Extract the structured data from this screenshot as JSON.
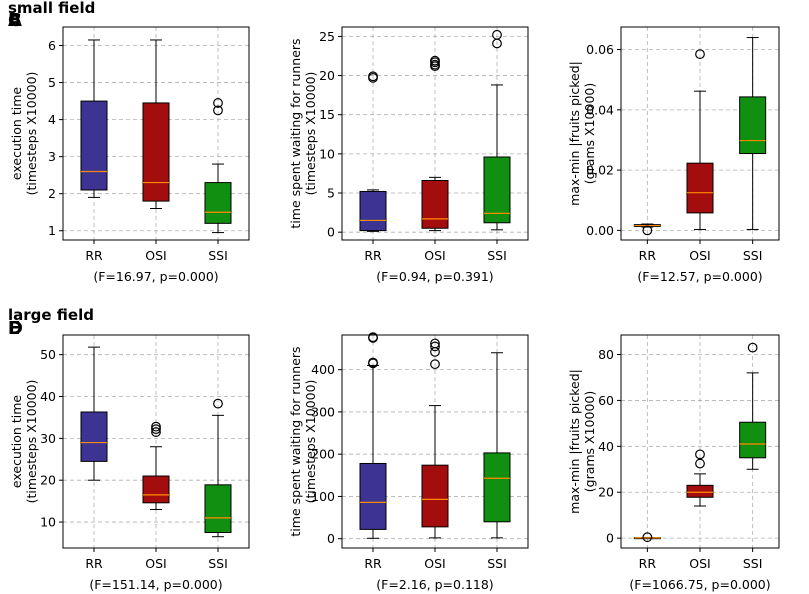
{
  "sections": {
    "small": "small field",
    "large": "large field"
  },
  "chart_data": [
    {
      "id": "A",
      "type": "boxplot",
      "ylabel": [
        "execution time",
        "(timesteps X10000)"
      ],
      "categories": [
        "RR",
        "OSI",
        "SSI"
      ],
      "colors": [
        "#3d3393",
        "#a30d0d",
        "#118f11"
      ],
      "ylim": [
        0.75,
        6.5
      ],
      "yticks": [
        1,
        2,
        3,
        4,
        5,
        6
      ],
      "ytick_labels": [
        "1",
        "2",
        "3",
        "4",
        "5",
        "6"
      ],
      "boxes": [
        {
          "whislo": 1.9,
          "q1": 2.1,
          "med": 2.6,
          "q3": 4.5,
          "whishi": 6.15,
          "fliers": []
        },
        {
          "whislo": 1.6,
          "q1": 1.8,
          "med": 2.3,
          "q3": 4.45,
          "whishi": 6.15,
          "fliers": []
        },
        {
          "whislo": 0.95,
          "q1": 1.2,
          "med": 1.5,
          "q3": 2.3,
          "whishi": 2.8,
          "fliers": [
            4.25,
            4.45
          ]
        }
      ],
      "stat": "(F=16.97, p=0.000)"
    },
    {
      "id": "B",
      "type": "boxplot",
      "ylabel": [
        "time spent waiting for runners",
        "(timesteps X10000)"
      ],
      "categories": [
        "RR",
        "OSI",
        "SSI"
      ],
      "colors": [
        "#3d3393",
        "#a30d0d",
        "#118f11"
      ],
      "ylim": [
        -1,
        26.2
      ],
      "yticks": [
        0,
        5,
        10,
        15,
        20,
        25
      ],
      "ytick_labels": [
        "0",
        "5",
        "10",
        "15",
        "20",
        "25"
      ],
      "boxes": [
        {
          "whislo": 0.1,
          "q1": 0.2,
          "med": 1.5,
          "q3": 5.2,
          "whishi": 5.4,
          "fliers": [
            19.7,
            19.9
          ]
        },
        {
          "whislo": 0.2,
          "q1": 0.5,
          "med": 1.7,
          "q3": 6.6,
          "whishi": 7.0,
          "fliers": [
            21.2,
            21.4,
            21.7,
            21.9
          ]
        },
        {
          "whislo": 0.3,
          "q1": 1.2,
          "med": 2.4,
          "q3": 9.6,
          "whishi": 18.8,
          "fliers": [
            24.1,
            25.2
          ]
        }
      ],
      "stat": "(F=0.94, p=0.391)"
    },
    {
      "id": "C",
      "type": "boxplot",
      "ylabel": [
        "max-min |fruits picked|",
        "(grams X10000)"
      ],
      "categories": [
        "RR",
        "OSI",
        "SSI"
      ],
      "colors": [
        "#3d3393",
        "#a30d0d",
        "#118f11"
      ],
      "ylim": [
        -0.0032,
        0.0675
      ],
      "yticks": [
        0,
        0.02,
        0.04,
        0.06
      ],
      "ytick_labels": [
        "0.00",
        "0.02",
        "0.04",
        "0.06"
      ],
      "boxes": [
        {
          "whislo": 0.0011,
          "q1": 0.0013,
          "med": 0.0016,
          "q3": 0.0019,
          "whishi": 0.0021,
          "fliers": [
            0.0
          ]
        },
        {
          "whislo": 0.0003,
          "q1": 0.0058,
          "med": 0.0125,
          "q3": 0.0223,
          "whishi": 0.0462,
          "fliers": [
            0.0585
          ]
        },
        {
          "whislo": 0.0003,
          "q1": 0.0255,
          "med": 0.0298,
          "q3": 0.0443,
          "whishi": 0.064,
          "fliers": []
        }
      ],
      "stat": "(F=12.57, p=0.000)"
    },
    {
      "id": "D",
      "type": "boxplot",
      "ylabel": [
        "execution time",
        "(timesteps X10000)"
      ],
      "categories": [
        "RR",
        "OSI",
        "SSI"
      ],
      "colors": [
        "#3d3393",
        "#a30d0d",
        "#118f11"
      ],
      "ylim": [
        3.8,
        54.7
      ],
      "yticks": [
        10,
        20,
        30,
        40,
        50
      ],
      "ytick_labels": [
        "10",
        "20",
        "30",
        "40",
        "50"
      ],
      "boxes": [
        {
          "whislo": 20.0,
          "q1": 24.5,
          "med": 29.0,
          "q3": 36.3,
          "whishi": 51.8,
          "fliers": []
        },
        {
          "whislo": 13.0,
          "q1": 14.6,
          "med": 16.5,
          "q3": 21.0,
          "whishi": 28.0,
          "fliers": [
            31.5,
            32.2,
            32.8
          ]
        },
        {
          "whislo": 6.5,
          "q1": 7.5,
          "med": 11.0,
          "q3": 18.9,
          "whishi": 35.5,
          "fliers": [
            38.3
          ]
        }
      ],
      "stat": "(F=151.14, p=0.000)"
    },
    {
      "id": "E",
      "type": "boxplot",
      "ylabel": [
        "time spent waiting for runners",
        "(timesteps X10000)"
      ],
      "categories": [
        "RR",
        "OSI",
        "SSI"
      ],
      "colors": [
        "#3d3393",
        "#a30d0d",
        "#118f11"
      ],
      "ylim": [
        -22,
        482
      ],
      "yticks": [
        0,
        100,
        200,
        300,
        400
      ],
      "ytick_labels": [
        "0",
        "100",
        "200",
        "300",
        "400"
      ],
      "boxes": [
        {
          "whislo": 1,
          "q1": 22,
          "med": 86,
          "q3": 178,
          "whishi": 410,
          "fliers": [
            415,
            417,
            475,
            477
          ]
        },
        {
          "whislo": 2,
          "q1": 28,
          "med": 93,
          "q3": 174,
          "whishi": 315,
          "fliers": [
            413,
            442,
            455,
            462
          ]
        },
        {
          "whislo": 2,
          "q1": 40,
          "med": 143,
          "q3": 203,
          "whishi": 440,
          "fliers": []
        }
      ],
      "stat": "(F=2.16, p=0.118)"
    },
    {
      "id": "F",
      "type": "boxplot",
      "ylabel": [
        "max-min |fruits picked|",
        "(grams X10000)"
      ],
      "categories": [
        "RR",
        "OSI",
        "SSI"
      ],
      "colors": [
        "#3d3393",
        "#a30d0d",
        "#118f11"
      ],
      "ylim": [
        -4.3,
        88.5
      ],
      "yticks": [
        0,
        20,
        40,
        60,
        80
      ],
      "ytick_labels": [
        "0",
        "20",
        "40",
        "60",
        "80"
      ],
      "boxes": [
        {
          "whislo": 0.0,
          "q1": 0.05,
          "med": 0.1,
          "q3": 0.2,
          "whishi": 0.3,
          "fliers": [
            0.4
          ]
        },
        {
          "whislo": 14.0,
          "q1": 17.8,
          "med": 20.0,
          "q3": 23.0,
          "whishi": 28.0,
          "fliers": [
            32.5,
            36.5
          ]
        },
        {
          "whislo": 30.0,
          "q1": 35.0,
          "med": 41.0,
          "q3": 50.5,
          "whishi": 72.0,
          "fliers": [
            83.0
          ]
        }
      ],
      "stat": "(F=1066.75, p=0.000)"
    }
  ]
}
